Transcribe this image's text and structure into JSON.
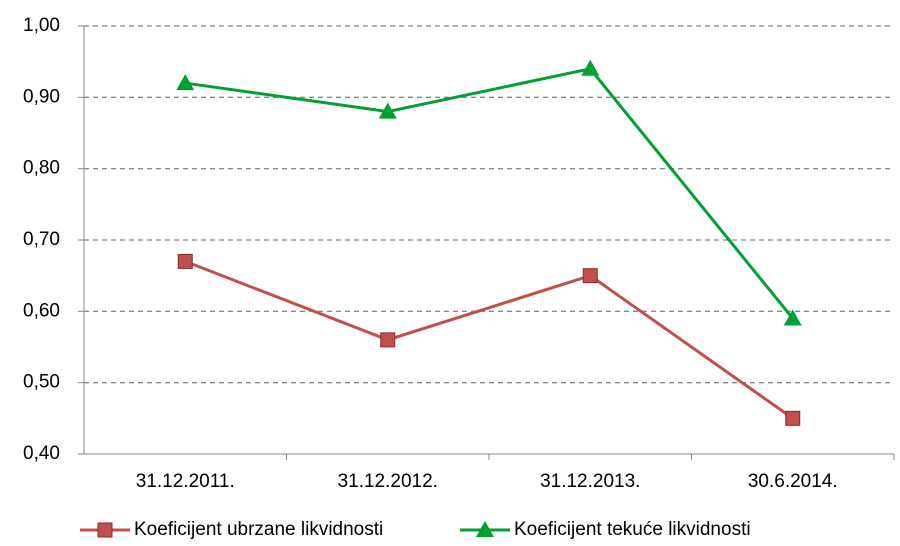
{
  "chart_data": {
    "type": "line",
    "categories": [
      "31.12.2011.",
      "31.12.2012.",
      "31.12.2013.",
      "30.6.2014."
    ],
    "series": [
      {
        "name": "Koeficijent ubrzane likvidnosti",
        "color": "#c0504d",
        "marker": "square",
        "values": [
          0.67,
          0.56,
          0.65,
          0.45
        ]
      },
      {
        "name": "Koeficijent tekuće likvidnosti",
        "color": "#00a032",
        "marker": "triangle",
        "values": [
          0.92,
          0.88,
          0.94,
          0.59
        ]
      }
    ],
    "ylim": [
      0.4,
      1.0
    ],
    "yticks": [
      {
        "value": 0.4,
        "label": "0,40"
      },
      {
        "value": 0.5,
        "label": "0,50"
      },
      {
        "value": 0.6,
        "label": "0,60"
      },
      {
        "value": 0.7,
        "label": "0,70"
      },
      {
        "value": 0.8,
        "label": "0,80"
      },
      {
        "value": 0.9,
        "label": "0,90"
      },
      {
        "value": 1.0,
        "label": "1,00"
      }
    ],
    "grid": true,
    "legend": "bottom"
  }
}
